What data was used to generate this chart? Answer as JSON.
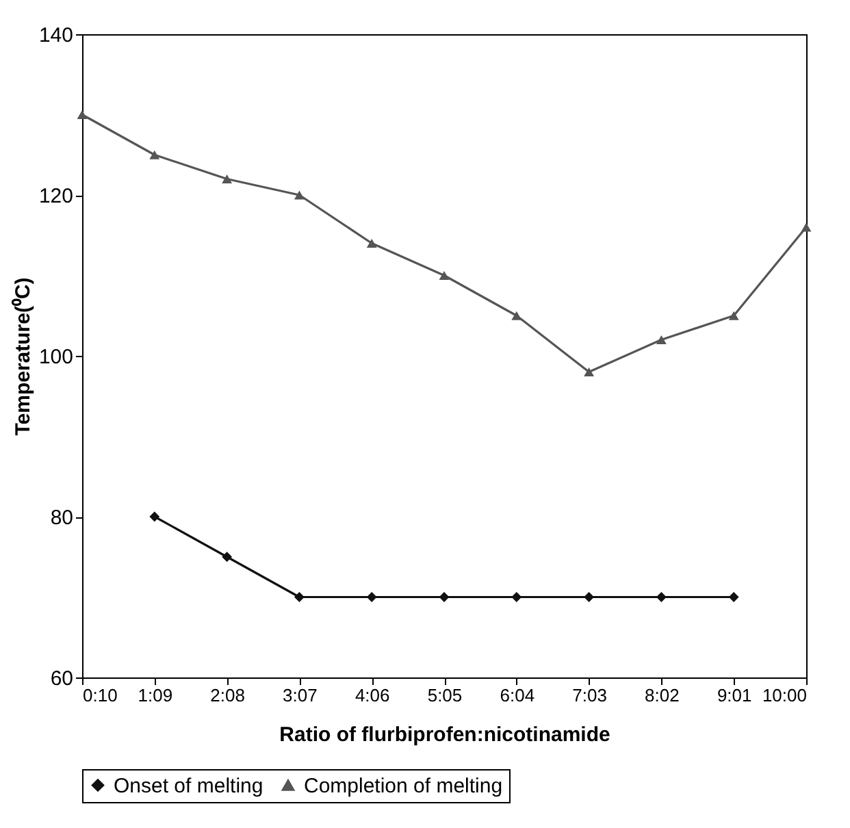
{
  "chart_data": {
    "type": "line",
    "xlabel": "Ratio of flurbiprofen:nicotinamide",
    "ylabel": "Temperature(⁰C)",
    "categories": [
      "0:10",
      "1:09",
      "2:08",
      "3:07",
      "4:06",
      "5:05",
      "6:04",
      "7:03",
      "8:02",
      "9:01",
      "10:00"
    ],
    "ylim": [
      60,
      140
    ],
    "yticks": [
      60,
      80,
      100,
      120,
      140
    ],
    "grid": false,
    "legend": "bottom",
    "line_style": "solid",
    "series": [
      {
        "name": "Onset of melting",
        "color": "#111111",
        "marker": "diamond",
        "values": [
          null,
          80,
          75,
          70,
          70,
          70,
          70,
          70,
          70,
          70,
          null
        ]
      },
      {
        "name": "Completion of melting",
        "color": "#555555",
        "marker": "triangle",
        "values": [
          130,
          125,
          122,
          120,
          114,
          110,
          105,
          98,
          102,
          105,
          116
        ]
      }
    ]
  }
}
